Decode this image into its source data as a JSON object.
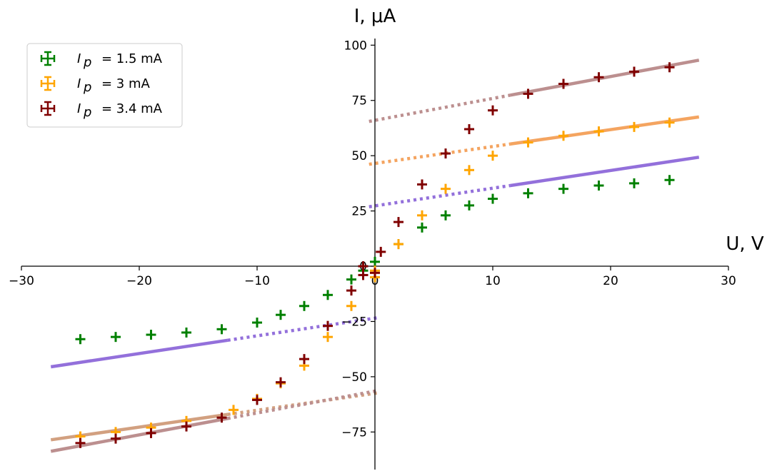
{
  "chart_data": {
    "type": "scatter",
    "xlabel": "U, V",
    "ylabel": "I, μA",
    "xlim": [
      -30,
      30
    ],
    "ylim": [
      -92,
      103
    ],
    "x_ticks": [
      -30,
      -20,
      -10,
      0,
      10,
      20,
      30
    ],
    "x_tick_labels": [
      "−30",
      "−20",
      "−10",
      "0",
      "10",
      "20",
      "30"
    ],
    "y_ticks": [
      -75,
      -50,
      -25,
      0,
      25,
      50,
      75,
      100
    ],
    "y_tick_labels": [
      "−75",
      "−50",
      "−25",
      "0",
      "25",
      "50",
      "75",
      "100"
    ],
    "grid": false,
    "legend_position": "top-left",
    "series": [
      {
        "name": "I_p = 1.5 mA",
        "legend_label": "= 1.5 mA",
        "color": "#008000",
        "points": [
          [
            -25,
            -33
          ],
          [
            -22,
            -32
          ],
          [
            -19,
            -31
          ],
          [
            -16,
            -30
          ],
          [
            -13,
            -28.5
          ],
          [
            -10,
            -25.5
          ],
          [
            -8,
            -22
          ],
          [
            -6,
            -18
          ],
          [
            -4,
            -13
          ],
          [
            -2,
            -6
          ],
          [
            -1,
            -2
          ],
          [
            0,
            2
          ],
          [
            2,
            10
          ],
          [
            4,
            17.5
          ],
          [
            6,
            23
          ],
          [
            8,
            27.5
          ],
          [
            10,
            30.5
          ],
          [
            13,
            33
          ],
          [
            16,
            35
          ],
          [
            19,
            36.5
          ],
          [
            22,
            37.5
          ],
          [
            25,
            39
          ]
        ],
        "fit_pos": {
          "slope": 0.8,
          "intercept": 27.3,
          "color": "#9370DB"
        },
        "fit_neg": {
          "slope": 0.8,
          "intercept": -23.5,
          "color": "#9370DB"
        }
      },
      {
        "name": "I_p = 3 mA",
        "legend_label": "= 3 mA",
        "color": "#FFA500",
        "points": [
          [
            -25,
            -77
          ],
          [
            -22,
            -75
          ],
          [
            -19,
            -73
          ],
          [
            -16,
            -70
          ],
          [
            -12,
            -65
          ],
          [
            -10,
            -60
          ],
          [
            -8,
            -53
          ],
          [
            -6,
            -45
          ],
          [
            -4,
            -32
          ],
          [
            -2,
            -18
          ],
          [
            0,
            -5
          ],
          [
            0,
            -2
          ],
          [
            2,
            10
          ],
          [
            4,
            23
          ],
          [
            6,
            35
          ],
          [
            8,
            43.5
          ],
          [
            10,
            50
          ],
          [
            13,
            56
          ],
          [
            16,
            59
          ],
          [
            19,
            61
          ],
          [
            22,
            63
          ],
          [
            25,
            65
          ]
        ],
        "fit_pos": {
          "slope": 0.765,
          "intercept": 46.5,
          "color": "#F4A460"
        },
        "fit_neg": {
          "slope": 0.765,
          "intercept": -57.5,
          "color": "#D2A080"
        }
      },
      {
        "name": "I_p = 3.4 mA",
        "legend_label": "= 3.4 mA",
        "color": "#800000",
        "points": [
          [
            -25,
            -80
          ],
          [
            -22,
            -78
          ],
          [
            -19,
            -75.5
          ],
          [
            -16,
            -72.5
          ],
          [
            -13,
            -68.5
          ],
          [
            -10,
            -60.5
          ],
          [
            -8,
            -52.5
          ],
          [
            -6,
            -42
          ],
          [
            -4,
            -27
          ],
          [
            -2,
            -11
          ],
          [
            -1,
            -4
          ],
          [
            -1,
            0
          ],
          [
            0,
            -3
          ],
          [
            0.5,
            6.5
          ],
          [
            2,
            20
          ],
          [
            4,
            37
          ],
          [
            6,
            51
          ],
          [
            8,
            62
          ],
          [
            10,
            70.5
          ],
          [
            13,
            78
          ],
          [
            16,
            82.5
          ],
          [
            19,
            85.5
          ],
          [
            22,
            88
          ],
          [
            25,
            90
          ]
        ],
        "fit_pos": {
          "slope": 0.99,
          "intercept": 66,
          "color": "#BC8F8F"
        },
        "fit_neg": {
          "slope": 0.99,
          "intercept": -56.5,
          "color": "#BC8F8F"
        }
      }
    ]
  },
  "legend": {
    "symbol_main": "I",
    "symbol_sub": "p"
  }
}
